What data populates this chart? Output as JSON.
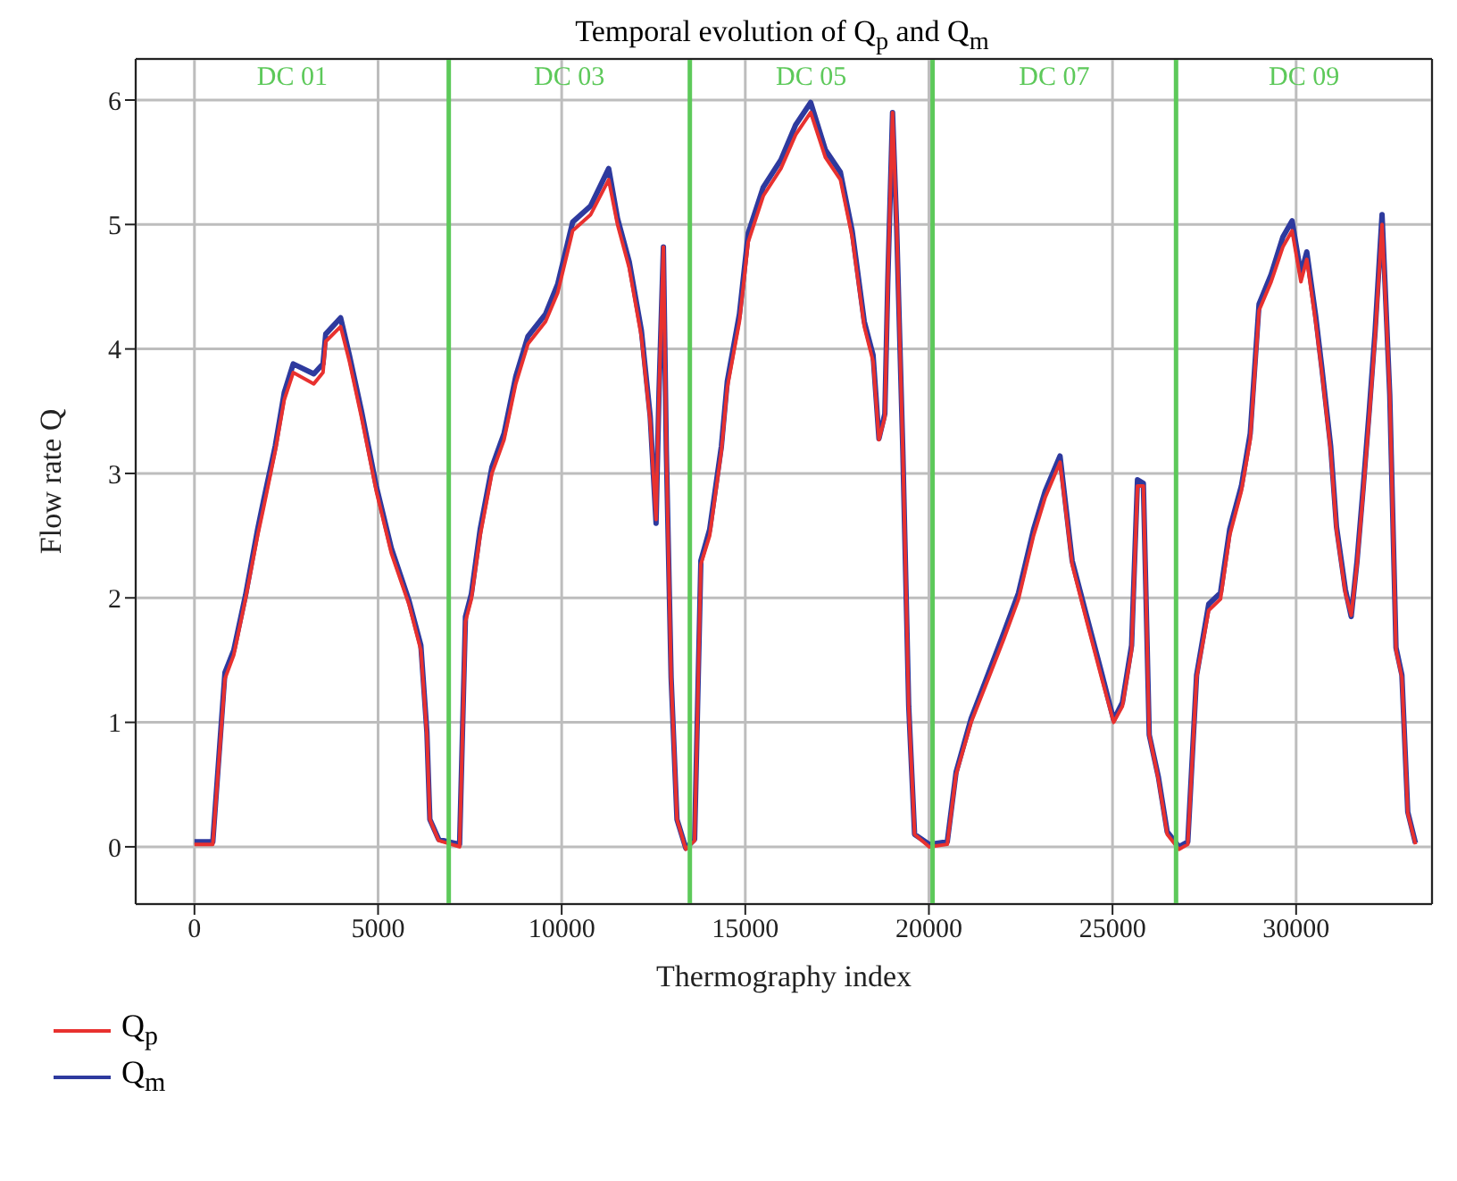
{
  "chart_data": {
    "type": "line",
    "title": "Temporal evolution of Q$_{p}$ and Q$_{m}$",
    "xlabel": "Thermography index",
    "ylabel": "Flow rate Q",
    "xlim": [
      -1600,
      33700
    ],
    "xticks": [
      0,
      5000,
      10000,
      15000,
      20000,
      25000,
      30000
    ],
    "ylim": [
      -0.46,
      6.33
    ],
    "yticks": [
      0,
      1,
      2,
      3,
      4,
      5,
      6
    ],
    "grid": true,
    "legend": "bottom left",
    "marker": "none",
    "line_style": "solid",
    "x": [
      0,
      500,
      830,
      1070,
      1390,
      1720,
      1880,
      2200,
      2445,
      2690,
      3250,
      3500,
      3575,
      3980,
      4220,
      4550,
      4950,
      5360,
      5840,
      6165,
      6330,
      6410,
      6650,
      7220,
      7380,
      7540,
      7780,
      8100,
      8430,
      8750,
      9080,
      9560,
      9890,
      10300,
      10790,
      11280,
      11520,
      11840,
      12170,
      12410,
      12570,
      12650,
      12770,
      12850,
      12980,
      13140,
      13380,
      13620,
      13790,
      14030,
      14350,
      14510,
      14840,
      15080,
      15490,
      15970,
      16370,
      16780,
      17180,
      17590,
      17910,
      18240,
      18480,
      18640,
      18800,
      18880,
      19010,
      19120,
      19290,
      19450,
      19610,
      20010,
      20500,
      20740,
      21150,
      21630,
      22040,
      22440,
      22850,
      23170,
      23570,
      23900,
      24300,
      24700,
      25030,
      25270,
      25520,
      25680,
      25840,
      26000,
      26250,
      26490,
      26810,
      27050,
      27290,
      27620,
      27940,
      28190,
      28510,
      28750,
      28990,
      29320,
      29640,
      29890,
      30130,
      30290,
      30530,
      30700,
      30940,
      31100,
      31340,
      31500,
      31660,
      31830,
      31990,
      32150,
      32340,
      32550,
      32720,
      32880,
      33040,
      33250
    ],
    "series": [
      {
        "name": "Q$_{m}$",
        "color": "#2e3a9e",
        "values": [
          0.04,
          0.04,
          1.4,
          1.58,
          2.02,
          2.55,
          2.78,
          3.22,
          3.65,
          3.88,
          3.8,
          3.88,
          4.12,
          4.25,
          3.95,
          3.5,
          2.9,
          2.4,
          1.98,
          1.62,
          0.92,
          0.22,
          0.06,
          0.02,
          1.85,
          2.03,
          2.55,
          3.05,
          3.32,
          3.78,
          4.1,
          4.28,
          4.52,
          5.02,
          5.15,
          5.45,
          5.05,
          4.7,
          4.15,
          3.46,
          2.6,
          3.65,
          4.82,
          3.18,
          1.36,
          0.22,
          -0.01,
          0.06,
          2.3,
          2.55,
          3.22,
          3.74,
          4.28,
          4.93,
          5.3,
          5.52,
          5.8,
          5.98,
          5.6,
          5.42,
          4.95,
          4.22,
          3.95,
          3.28,
          3.48,
          4.54,
          5.9,
          5.0,
          3.18,
          1.13,
          0.1,
          0.02,
          0.04,
          0.6,
          1.03,
          1.4,
          1.72,
          2.04,
          2.55,
          2.86,
          3.14,
          2.3,
          1.85,
          1.4,
          1.02,
          1.16,
          1.62,
          2.95,
          2.92,
          0.9,
          0.56,
          0.12,
          0.0,
          0.04,
          1.38,
          1.95,
          2.04,
          2.55,
          2.9,
          3.32,
          4.36,
          4.6,
          4.9,
          5.03,
          4.6,
          4.78,
          4.27,
          3.85,
          3.22,
          2.57,
          2.07,
          1.85,
          2.3,
          2.9,
          3.5,
          4.14,
          5.08,
          3.63,
          1.6,
          1.38,
          0.28,
          0.03
        ]
      },
      {
        "name": "Q$_{p}$",
        "color": "#e8312f",
        "values": [
          0.02,
          0.02,
          1.35,
          1.54,
          1.99,
          2.5,
          2.72,
          3.18,
          3.59,
          3.81,
          3.72,
          3.81,
          4.06,
          4.18,
          3.9,
          3.45,
          2.86,
          2.36,
          1.95,
          1.58,
          0.9,
          0.22,
          0.05,
          0.0,
          1.81,
          1.99,
          2.5,
          3.0,
          3.27,
          3.72,
          4.04,
          4.22,
          4.45,
          4.95,
          5.08,
          5.36,
          5.0,
          4.65,
          4.1,
          3.42,
          2.63,
          3.63,
          4.82,
          3.18,
          1.36,
          0.22,
          -0.02,
          0.05,
          2.27,
          2.5,
          3.18,
          3.69,
          4.22,
          4.86,
          5.23,
          5.45,
          5.72,
          5.9,
          5.54,
          5.36,
          4.9,
          4.18,
          3.9,
          3.27,
          3.45,
          4.54,
          5.9,
          5.0,
          3.18,
          1.13,
          0.1,
          0.0,
          0.02,
          0.58,
          1.0,
          1.36,
          1.67,
          1.99,
          2.5,
          2.81,
          3.09,
          2.27,
          1.81,
          1.36,
          1.0,
          1.13,
          1.58,
          2.9,
          2.9,
          0.9,
          0.54,
          0.1,
          -0.02,
          0.02,
          1.36,
          1.9,
          1.99,
          2.5,
          2.86,
          3.27,
          4.31,
          4.54,
          4.82,
          4.95,
          4.54,
          4.72,
          4.22,
          3.81,
          3.18,
          2.54,
          2.04,
          1.86,
          2.27,
          2.86,
          3.45,
          4.09,
          5.0,
          3.63,
          1.58,
          1.36,
          0.27,
          0.02
        ]
      }
    ],
    "ref_lines": [
      {
        "axis": "x",
        "value": 6925,
        "color": "#5dc95a"
      },
      {
        "axis": "x",
        "value": 13490,
        "color": "#5dc95a"
      },
      {
        "axis": "x",
        "value": 20100,
        "color": "#5dc95a"
      },
      {
        "axis": "x",
        "value": 26730,
        "color": "#5dc95a"
      }
    ],
    "annotations": [
      "DC 01",
      "DC 03",
      "DC 05",
      "DC 07",
      "DC 09"
    ]
  }
}
